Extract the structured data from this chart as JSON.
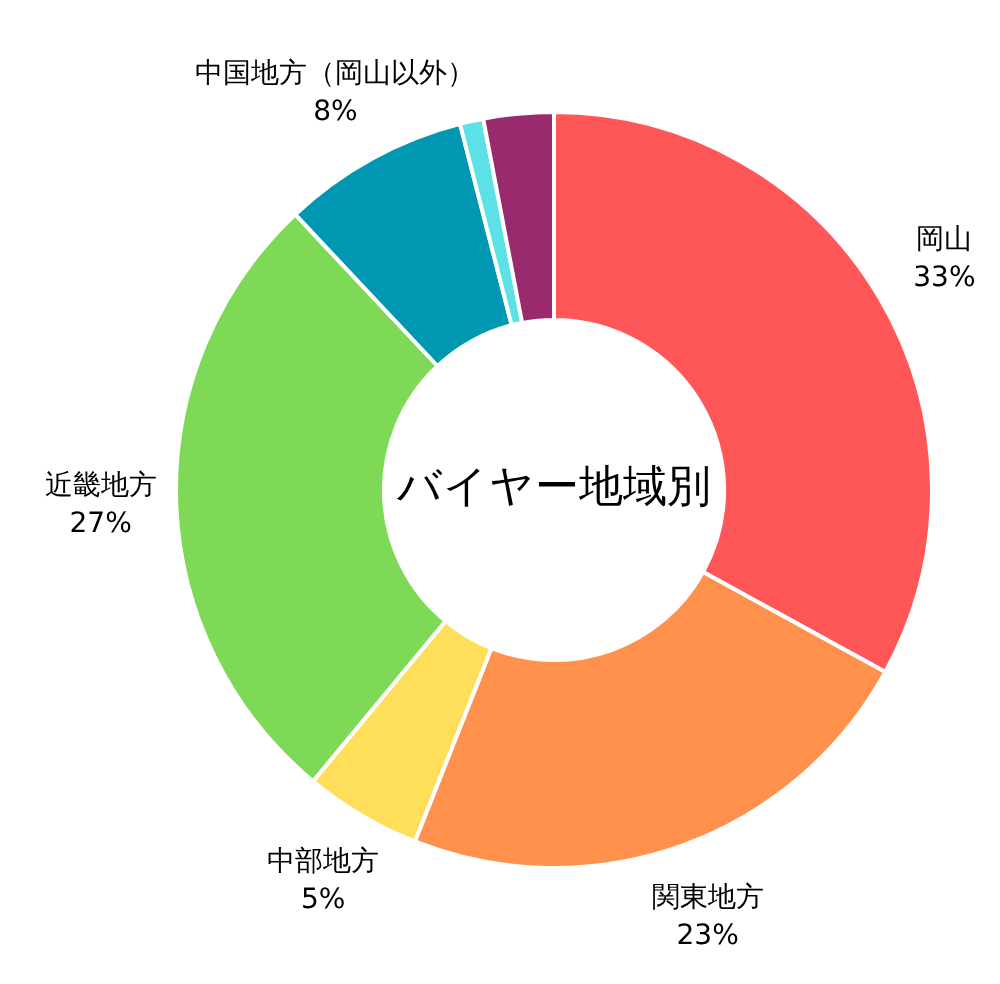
{
  "chart_data": {
    "type": "donut",
    "title": "バイヤー地域別",
    "categories": [
      "岡山",
      "関東地方",
      "中部地方",
      "近畿地方",
      "中国地方（岡山以外）",
      null,
      null
    ],
    "values": [
      33,
      23,
      5,
      27,
      8,
      1,
      3
    ],
    "colors": [
      "#ff5757",
      "#ff914d",
      "#ffde59",
      "#7ed957",
      "#0097b2",
      "#5ce1e6",
      "#992a6e"
    ],
    "value_labels": [
      "33%",
      "23%",
      "5%",
      "27%",
      "8%",
      null,
      null
    ],
    "legend": false
  }
}
